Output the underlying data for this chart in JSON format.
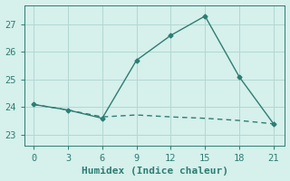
{
  "line1_x": [
    0,
    3,
    6,
    9,
    12,
    15,
    18,
    21
  ],
  "line1_y": [
    24.1,
    23.9,
    23.6,
    25.7,
    26.6,
    27.3,
    25.1,
    23.4
  ],
  "line2_x": [
    0,
    3,
    6,
    9,
    12,
    15,
    18,
    21
  ],
  "line2_y": [
    24.1,
    23.9,
    23.65,
    23.72,
    23.65,
    23.6,
    23.52,
    23.4
  ],
  "line_color": "#2d7d72",
  "background_color": "#d6f0ec",
  "grid_color": "#b0d8d2",
  "xlabel": "Humidex (Indice chaleur)",
  "xticks": [
    0,
    3,
    6,
    9,
    12,
    15,
    18,
    21
  ],
  "yticks": [
    23,
    24,
    25,
    26,
    27
  ],
  "xlim": [
    -0.8,
    22.0
  ],
  "ylim": [
    22.6,
    27.7
  ],
  "tick_fontsize": 7.5,
  "xlabel_fontsize": 8,
  "marker": "D",
  "marker_size": 2.5,
  "line_width": 1.0,
  "figsize": [
    3.2,
    2.0
  ],
  "dpi": 100
}
